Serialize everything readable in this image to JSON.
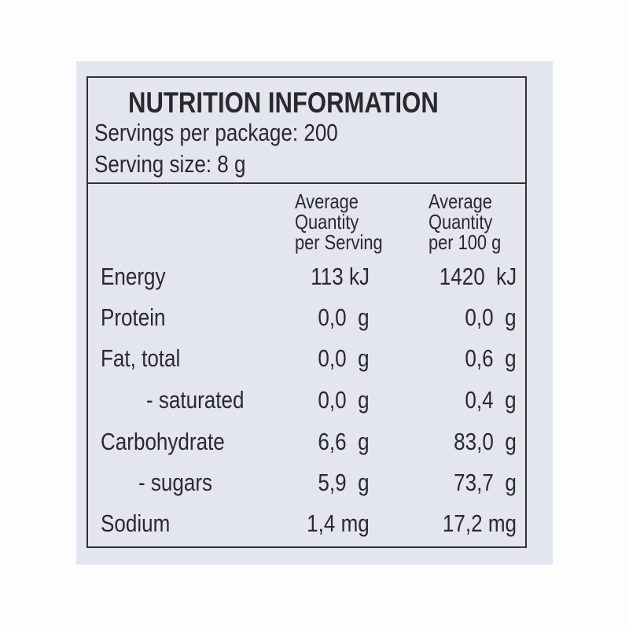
{
  "header": {
    "title": "NUTRITION INFORMATION",
    "servings": "Servings per package: 200",
    "serving_size": "Serving size: 8 g"
  },
  "table": {
    "columns": [
      [
        "Average",
        "Quantity",
        "per Serving"
      ],
      [
        "Average",
        "Quantity",
        "per 100 g"
      ]
    ],
    "rows": [
      [
        "Energy",
        "113 kJ",
        "1420  kJ"
      ],
      [
        "Protein",
        "0,0  g",
        "0,0  g"
      ],
      [
        "Fat, total",
        "0,0  g",
        "0,6  g"
      ],
      [
        "- saturated",
        "0,0  g",
        "0,4  g"
      ],
      [
        "Carbohydrate",
        "6,6  g",
        "83,0  g"
      ],
      [
        "- sugars",
        "5,9  g",
        "73,7  g"
      ],
      [
        "Sodium",
        "1,4 mg",
        "17,2 mg"
      ]
    ]
  }
}
